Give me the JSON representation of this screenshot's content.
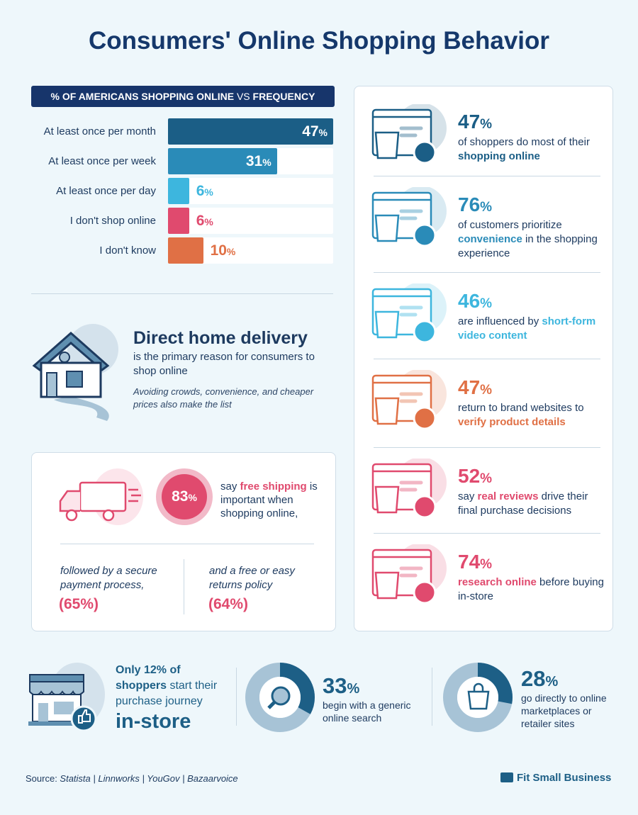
{
  "title": "Consumers' Online Shopping Behavior",
  "chart_header": {
    "part1": "% OF AMERICANS SHOPPING ONLINE",
    "part2": "VS",
    "part3": "FREQUENCY"
  },
  "chart_data": {
    "type": "bar",
    "orientation": "horizontal",
    "title": "% OF AMERICANS SHOPPING ONLINE VS FREQUENCY",
    "categories": [
      "At least once per month",
      "At least once per week",
      "At least once per day",
      "I don't shop online",
      "I don't know"
    ],
    "values": [
      47,
      31,
      6,
      6,
      10
    ],
    "unit": "%",
    "colors": [
      "#1b5e86",
      "#2a8bb8",
      "#3db6de",
      "#e04a6e",
      "#e07045"
    ],
    "xlim": [
      0,
      47
    ]
  },
  "delivery": {
    "heading": "Direct home delivery",
    "text": "is the primary reason for consumers to shop online",
    "note": "Avoiding crowds, convenience, and cheaper prices also make the list"
  },
  "shipping": {
    "pct": "83",
    "say": "say ",
    "hl": "free shipping",
    "rest": "is important when shopping online,",
    "left_text": "followed by a secure payment process,",
    "left_val": "(65%)",
    "right_text": "and a free or easy returns policy",
    "right_val": "(64%)"
  },
  "stats": [
    {
      "num": "47",
      "pre": "of shoppers do most of their ",
      "hl": "shopping online",
      "post": "",
      "color": "#1b5e86"
    },
    {
      "num": "76",
      "pre": "of customers prioritize ",
      "hl": "convenience",
      "post": " in the shopping experience",
      "color": "#2a8bb8"
    },
    {
      "num": "46",
      "pre": "are influenced by ",
      "hl": "short-form video content",
      "post": "",
      "color": "#3db6de"
    },
    {
      "num": "47",
      "pre": "return to brand websites to ",
      "hl": "verify product details",
      "post": "",
      "color": "#e07045"
    },
    {
      "num": "52",
      "pre": "say ",
      "hl": "real reviews",
      "post": " drive their final purchase decisions",
      "color": "#e04a6e"
    },
    {
      "num": "74",
      "pre": "",
      "hl": "research online",
      "post": " before buying in-store",
      "color": "#e04a6e"
    }
  ],
  "bottom": {
    "instore_a": "Only 12% of",
    "instore_b": "shoppers",
    "instore_c": " start their purchase journey",
    "instore_d": "in-store",
    "search_num": "33",
    "search_txt": "begin with a generic online search",
    "search_frac": 0.33,
    "market_num": "28",
    "market_txt": "go directly to online marketplaces or retailer sites",
    "market_frac": 0.28
  },
  "footer": {
    "source_label": "Source: ",
    "sources": "Statista | Linnworks | YouGov | Bazaarvoice",
    "brand": "Fit Small Business"
  }
}
